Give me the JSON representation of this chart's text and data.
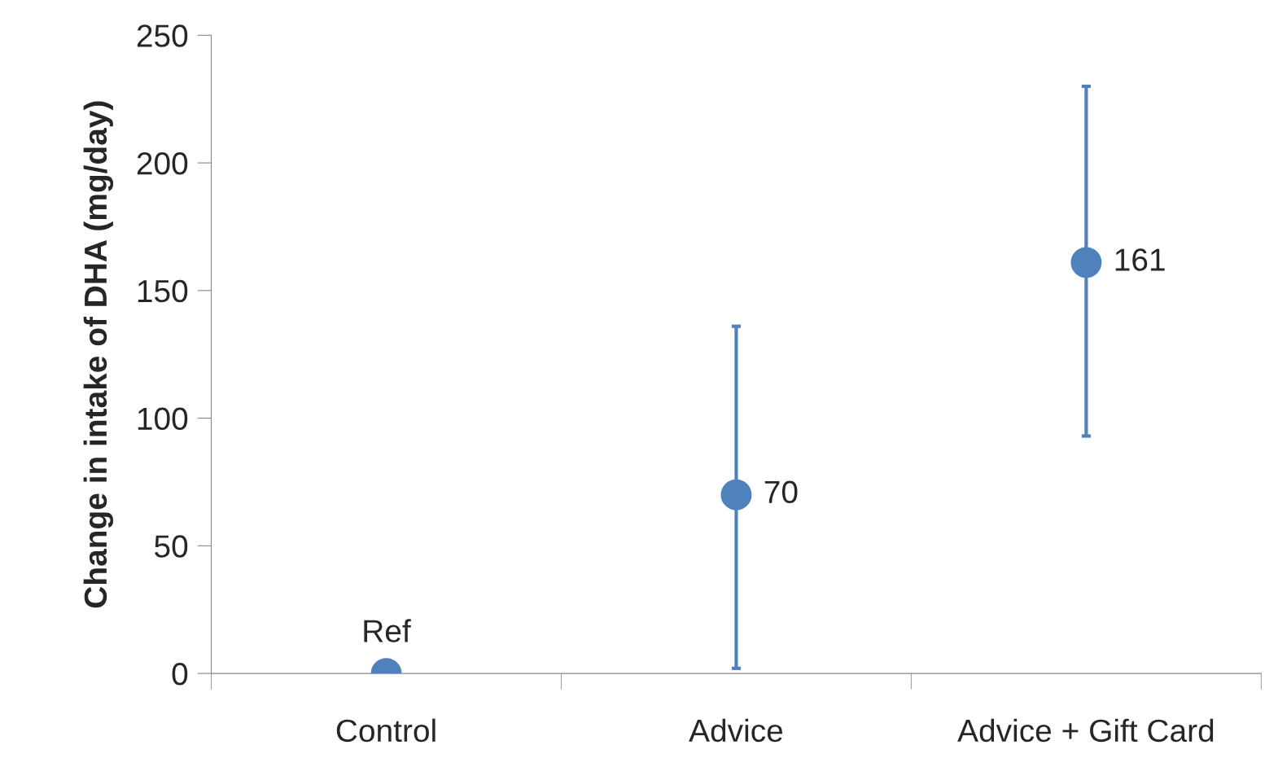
{
  "chart_data": {
    "type": "scatter",
    "ylabel": "Change in intake of DHA (mg/day)",
    "categories": [
      "Control",
      "Advice",
      "Advice + Gift Card"
    ],
    "series": [
      {
        "color": "#4f81bd",
        "values": [
          0,
          70,
          161
        ],
        "errors": [
          null,
          [
            2,
            136
          ],
          [
            93,
            230
          ]
        ],
        "value_labels": [
          "Ref",
          "70",
          "161"
        ]
      }
    ],
    "ylim": [
      0,
      250
    ],
    "yticks": [
      0,
      50,
      100,
      150,
      200,
      250
    ],
    "grid": false,
    "marker": "circle",
    "legend": false
  }
}
